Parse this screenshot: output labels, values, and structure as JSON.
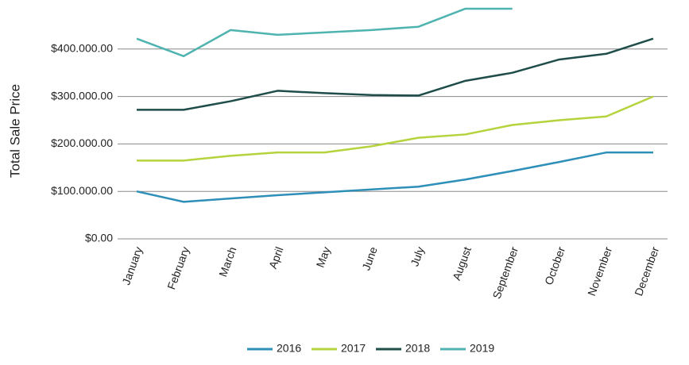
{
  "chart_data": {
    "type": "line",
    "y_label": "Total Sale Price",
    "categories": [
      "January",
      "February",
      "March",
      "April",
      "May",
      "June",
      "July",
      "August",
      "September",
      "October",
      "November",
      "December"
    ],
    "series": [
      {
        "name": "2016",
        "color": "#2e8fb8",
        "values": [
          100000,
          78000,
          85000,
          92000,
          98000,
          104000,
          110000,
          125000,
          143000,
          162000,
          182000,
          182000
        ]
      },
      {
        "name": "2017",
        "color": "#b5d33d",
        "values": [
          165000,
          165000,
          175000,
          182000,
          182000,
          195000,
          213000,
          220000,
          240000,
          250000,
          258000,
          300000
        ]
      },
      {
        "name": "2018",
        "color": "#1e4d4a",
        "values": [
          272000,
          272000,
          290000,
          312000,
          307000,
          303000,
          302000,
          333000,
          350000,
          378000,
          390000,
          422000
        ]
      },
      {
        "name": "2019",
        "color": "#4fb3b0",
        "values": [
          422000,
          385000,
          440000,
          430000,
          435000,
          440000,
          447000,
          485000,
          485000,
          null,
          null,
          null
        ]
      }
    ],
    "ylim": [
      0,
      500000
    ],
    "yticks": [
      {
        "value": 0,
        "label": "$0.00"
      },
      {
        "value": 100000,
        "label": "$100.000.00"
      },
      {
        "value": 200000,
        "label": "$200.000.00"
      },
      {
        "value": 300000,
        "label": "$300.000.00"
      },
      {
        "value": 400000,
        "label": "$400.000.00"
      }
    ],
    "grid": true,
    "legend": "bottom"
  }
}
